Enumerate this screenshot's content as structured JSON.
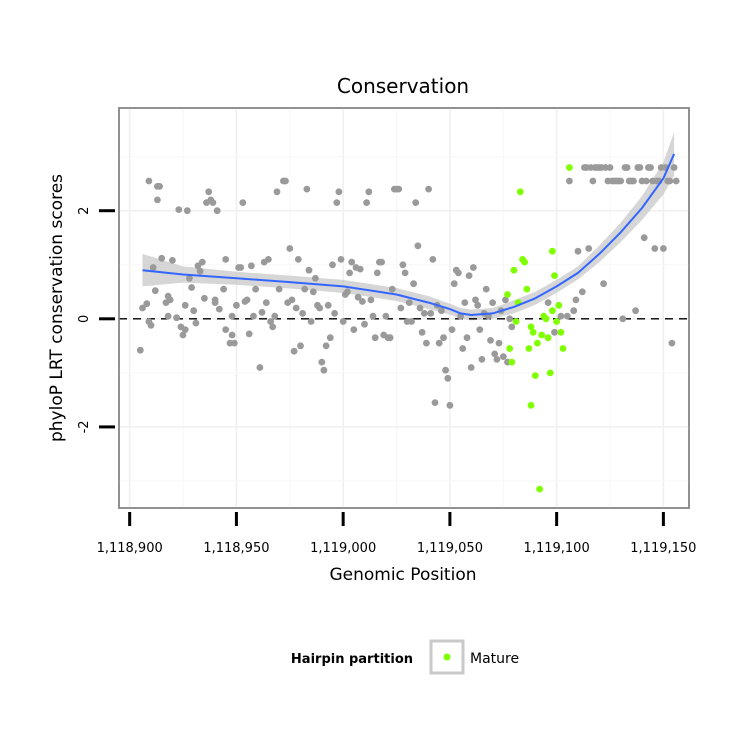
{
  "chart_data": {
    "type": "scatter",
    "title": "Conservation",
    "xlabel": "Genomic Position",
    "ylabel": "phyloP LRT conservation scores",
    "xlim": [
      1118895,
      1119162
    ],
    "ylim": [
      -3.5,
      3.9
    ],
    "x_ticks": [
      1118900,
      1118950,
      1119000,
      1119050,
      1119100,
      1119150
    ],
    "x_tick_labels": [
      "1,118,900",
      "1,118,950",
      "1,119,000",
      "1,119,050",
      "1,119,100",
      "1,119,150"
    ],
    "y_ticks": [
      -2,
      0,
      2
    ],
    "y_tick_labels": [
      "-2",
      "0",
      "2"
    ],
    "grid": true,
    "reference_line": {
      "y": 0,
      "style": "dashed"
    },
    "legend": {
      "title": "Hairpin partition",
      "placement": "bottom",
      "entries": [
        {
          "label": "Mature",
          "color": "#7fff00"
        }
      ]
    },
    "colors": {
      "background_points": "#9a9a9a",
      "mature": "#7fff00",
      "trend": "#3366ff",
      "ribbon": "#c8c8c8"
    },
    "series": [
      {
        "color": "#9a9a9a",
        "points": [
          [
            1118905,
            -0.58
          ],
          [
            1118906,
            0.2
          ],
          [
            1118908,
            0.28
          ],
          [
            1118909,
            -0.05
          ],
          [
            1118909,
            2.55
          ],
          [
            1118910,
            -0.12
          ],
          [
            1118911,
            0.95
          ],
          [
            1118912,
            0.52
          ],
          [
            1118913,
            2.45
          ],
          [
            1118913,
            2.2
          ],
          [
            1118914,
            2.45
          ],
          [
            1118915,
            1.12
          ],
          [
            1118917,
            0.3
          ],
          [
            1118918,
            0.42
          ],
          [
            1118918,
            0.05
          ],
          [
            1118919,
            0.35
          ],
          [
            1118920,
            1.08
          ],
          [
            1118922,
            0.02
          ],
          [
            1118923,
            2.02
          ],
          [
            1118924,
            -0.15
          ],
          [
            1118925,
            -0.3
          ],
          [
            1118926,
            -0.2
          ],
          [
            1118926,
            0.25
          ],
          [
            1118927,
            2.0
          ],
          [
            1118928,
            0.75
          ],
          [
            1118929,
            0.58
          ],
          [
            1118930,
            0.15
          ],
          [
            1118931,
            -0.08
          ],
          [
            1118932,
            0.98
          ],
          [
            1118933,
            0.88
          ],
          [
            1118934,
            1.05
          ],
          [
            1118935,
            0.38
          ],
          [
            1118936,
            2.15
          ],
          [
            1118937,
            2.35
          ],
          [
            1118938,
            2.2
          ],
          [
            1118939,
            2.15
          ],
          [
            1118940,
            0.35
          ],
          [
            1118940,
            0.3
          ],
          [
            1118941,
            2.0
          ],
          [
            1118942,
            0.18
          ],
          [
            1118944,
            0.55
          ],
          [
            1118945,
            1.1
          ],
          [
            1118945,
            -0.2
          ],
          [
            1118947,
            -0.45
          ],
          [
            1118948,
            0.05
          ],
          [
            1118948,
            -0.3
          ],
          [
            1118949,
            -0.45
          ],
          [
            1118950,
            0.25
          ],
          [
            1118951,
            0.95
          ],
          [
            1118952,
            0.95
          ],
          [
            1118953,
            2.15
          ],
          [
            1118954,
            0.32
          ],
          [
            1118955,
            0.35
          ],
          [
            1118956,
            -0.28
          ],
          [
            1118957,
            0.98
          ],
          [
            1118958,
            0.05
          ],
          [
            1118959,
            0.55
          ],
          [
            1118961,
            -0.9
          ],
          [
            1118962,
            0.12
          ],
          [
            1118963,
            1.05
          ],
          [
            1118964,
            0.3
          ],
          [
            1118965,
            1.1
          ],
          [
            1118966,
            -0.05
          ],
          [
            1118967,
            -0.15
          ],
          [
            1118968,
            0.05
          ],
          [
            1118969,
            2.35
          ],
          [
            1118970,
            0.55
          ],
          [
            1118972,
            2.55
          ],
          [
            1118973,
            2.55
          ],
          [
            1118974,
            0.3
          ],
          [
            1118975,
            1.3
          ],
          [
            1118976,
            0.35
          ],
          [
            1118977,
            -0.6
          ],
          [
            1118978,
            0.2
          ],
          [
            1118979,
            1.1
          ],
          [
            1118980,
            -0.5
          ],
          [
            1118981,
            0.1
          ],
          [
            1118982,
            0.55
          ],
          [
            1118983,
            2.4
          ],
          [
            1118984,
            0.9
          ],
          [
            1118985,
            -0.05
          ],
          [
            1118986,
            0.5
          ],
          [
            1118987,
            0.75
          ],
          [
            1118988,
            0.25
          ],
          [
            1118989,
            0.2
          ],
          [
            1118990,
            -0.8
          ],
          [
            1118991,
            -0.95
          ],
          [
            1118992,
            -0.5
          ],
          [
            1118993,
            0.25
          ],
          [
            1118994,
            -0.35
          ],
          [
            1118995,
            1.0
          ],
          [
            1118996,
            0.1
          ],
          [
            1118997,
            2.15
          ],
          [
            1118998,
            2.35
          ],
          [
            1118999,
            1.1
          ],
          [
            1119000,
            -0.05
          ],
          [
            1119001,
            0.45
          ],
          [
            1119002,
            0.5
          ],
          [
            1119003,
            0.85
          ],
          [
            1119004,
            1.05
          ],
          [
            1119005,
            -0.2
          ],
          [
            1119006,
            0.95
          ],
          [
            1119007,
            0.4
          ],
          [
            1119008,
            0.92
          ],
          [
            1119009,
            0.32
          ],
          [
            1119010,
            -0.1
          ],
          [
            1119011,
            2.15
          ],
          [
            1119012,
            2.35
          ],
          [
            1119013,
            0.35
          ],
          [
            1119014,
            0.05
          ],
          [
            1119015,
            -0.35
          ],
          [
            1119016,
            0.85
          ],
          [
            1119017,
            1.05
          ],
          [
            1119018,
            1.05
          ],
          [
            1119019,
            -0.3
          ],
          [
            1119020,
            0.05
          ],
          [
            1119021,
            -0.35
          ],
          [
            1119022,
            -0.35
          ],
          [
            1119023,
            0.55
          ],
          [
            1119024,
            2.4
          ],
          [
            1119025,
            2.4
          ],
          [
            1119026,
            2.4
          ],
          [
            1119027,
            0.2
          ],
          [
            1119028,
            1.0
          ],
          [
            1119029,
            0.85
          ],
          [
            1119030,
            -0.05
          ],
          [
            1119031,
            0.3
          ],
          [
            1119032,
            -0.05
          ],
          [
            1119033,
            0.65
          ],
          [
            1119034,
            2.15
          ],
          [
            1119035,
            1.35
          ],
          [
            1119036,
            0.2
          ],
          [
            1119037,
            -0.25
          ],
          [
            1119038,
            0.1
          ],
          [
            1119039,
            -0.45
          ],
          [
            1119040,
            2.4
          ],
          [
            1119041,
            0.1
          ],
          [
            1119042,
            1.1
          ],
          [
            1119043,
            -1.55
          ],
          [
            1119044,
            0.25
          ],
          [
            1119045,
            -0.45
          ],
          [
            1119046,
            0.15
          ],
          [
            1119047,
            -0.35
          ],
          [
            1119048,
            -0.95
          ],
          [
            1119049,
            -1.1
          ],
          [
            1119050,
            -1.6
          ],
          [
            1119051,
            -0.2
          ],
          [
            1119052,
            0.65
          ],
          [
            1119053,
            0.9
          ],
          [
            1119054,
            0.85
          ],
          [
            1119055,
            0.05
          ],
          [
            1119056,
            -0.55
          ],
          [
            1119057,
            0.3
          ],
          [
            1119058,
            -0.35
          ],
          [
            1119059,
            0.8
          ],
          [
            1119060,
            -0.9
          ],
          [
            1119061,
            0.95
          ],
          [
            1119062,
            0.35
          ],
          [
            1119063,
            0.25
          ],
          [
            1119064,
            -0.2
          ],
          [
            1119065,
            -0.75
          ],
          [
            1119066,
            0.1
          ],
          [
            1119067,
            0.55
          ],
          [
            1119068,
            0.05
          ],
          [
            1119069,
            -0.4
          ],
          [
            1119070,
            0.3
          ],
          [
            1119071,
            -0.65
          ],
          [
            1119072,
            -0.75
          ],
          [
            1119073,
            -0.45
          ],
          [
            1119074,
            0.15
          ],
          [
            1119075,
            -0.7
          ],
          [
            1119076,
            0.35
          ],
          [
            1119077,
            -0.8
          ],
          [
            1119078,
            0.0
          ],
          [
            1119079,
            -0.15
          ],
          [
            1119096,
            0.3
          ],
          [
            1119099,
            -0.25
          ],
          [
            1119102,
            0.05
          ],
          [
            1119105,
            0.05
          ],
          [
            1119106,
            2.55
          ],
          [
            1119108,
            0.15
          ],
          [
            1119109,
            0.35
          ],
          [
            1119110,
            1.25
          ],
          [
            1119112,
            0.5
          ],
          [
            1119113,
            2.8
          ],
          [
            1119114,
            2.8
          ],
          [
            1119115,
            1.3
          ],
          [
            1119116,
            2.8
          ],
          [
            1119117,
            2.55
          ],
          [
            1119118,
            2.8
          ],
          [
            1119119,
            2.8
          ],
          [
            1119120,
            2.8
          ],
          [
            1119121,
            2.8
          ],
          [
            1119122,
            0.65
          ],
          [
            1119123,
            2.8
          ],
          [
            1119124,
            2.55
          ],
          [
            1119125,
            2.8
          ],
          [
            1119126,
            2.55
          ],
          [
            1119127,
            2.55
          ],
          [
            1119128,
            2.55
          ],
          [
            1119129,
            2.55
          ],
          [
            1119130,
            2.55
          ],
          [
            1119131,
            0.0
          ],
          [
            1119132,
            2.8
          ],
          [
            1119133,
            2.8
          ],
          [
            1119134,
            2.55
          ],
          [
            1119135,
            2.55
          ],
          [
            1119136,
            2.55
          ],
          [
            1119137,
            0.15
          ],
          [
            1119138,
            2.8
          ],
          [
            1119139,
            2.8
          ],
          [
            1119140,
            2.55
          ],
          [
            1119141,
            1.5
          ],
          [
            1119142,
            2.55
          ],
          [
            1119143,
            2.8
          ],
          [
            1119144,
            2.8
          ],
          [
            1119145,
            2.55
          ],
          [
            1119146,
            1.3
          ],
          [
            1119147,
            2.55
          ],
          [
            1119148,
            2.55
          ],
          [
            1119149,
            2.8
          ],
          [
            1119150,
            1.3
          ],
          [
            1119151,
            2.8
          ],
          [
            1119152,
            2.55
          ],
          [
            1119153,
            2.55
          ],
          [
            1119154,
            -0.45
          ],
          [
            1119155,
            2.8
          ],
          [
            1119156,
            2.55
          ]
        ]
      },
      {
        "name": "Mature",
        "color": "#7fff00",
        "points": [
          [
            1119077,
            0.45
          ],
          [
            1119078,
            -0.55
          ],
          [
            1119079,
            -0.8
          ],
          [
            1119080,
            0.9
          ],
          [
            1119081,
            -0.05
          ],
          [
            1119082,
            0.3
          ],
          [
            1119083,
            2.35
          ],
          [
            1119084,
            1.1
          ],
          [
            1119085,
            1.05
          ],
          [
            1119086,
            0.55
          ],
          [
            1119087,
            -0.55
          ],
          [
            1119088,
            -1.6
          ],
          [
            1119088,
            -0.15
          ],
          [
            1119089,
            -0.25
          ],
          [
            1119090,
            -1.05
          ],
          [
            1119091,
            -0.45
          ],
          [
            1119092,
            -3.15
          ],
          [
            1119093,
            -0.3
          ],
          [
            1119094,
            0.05
          ],
          [
            1119095,
            0.0
          ],
          [
            1119096,
            -0.35
          ],
          [
            1119097,
            -1.0
          ],
          [
            1119098,
            1.25
          ],
          [
            1119098,
            0.15
          ],
          [
            1119099,
            0.8
          ],
          [
            1119100,
            -0.05
          ],
          [
            1119101,
            0.25
          ],
          [
            1119102,
            -0.25
          ],
          [
            1119103,
            -0.55
          ],
          [
            1119106,
            2.8
          ]
        ]
      }
    ],
    "trend": {
      "x": [
        1118906,
        1118925,
        1118950,
        1118975,
        1119000,
        1119025,
        1119040,
        1119050,
        1119055,
        1119060,
        1119070,
        1119080,
        1119090,
        1119100,
        1119110,
        1119120,
        1119130,
        1119140,
        1119150,
        1119155
      ],
      "y": [
        0.9,
        0.82,
        0.75,
        0.68,
        0.6,
        0.45,
        0.3,
        0.18,
        0.1,
        0.07,
        0.1,
        0.22,
        0.38,
        0.6,
        0.85,
        1.2,
        1.6,
        2.05,
        2.6,
        3.05
      ],
      "band": [
        0.3,
        0.15,
        0.12,
        0.12,
        0.12,
        0.12,
        0.12,
        0.1,
        0.1,
        0.1,
        0.1,
        0.12,
        0.12,
        0.12,
        0.12,
        0.15,
        0.18,
        0.22,
        0.3,
        0.4
      ]
    }
  }
}
